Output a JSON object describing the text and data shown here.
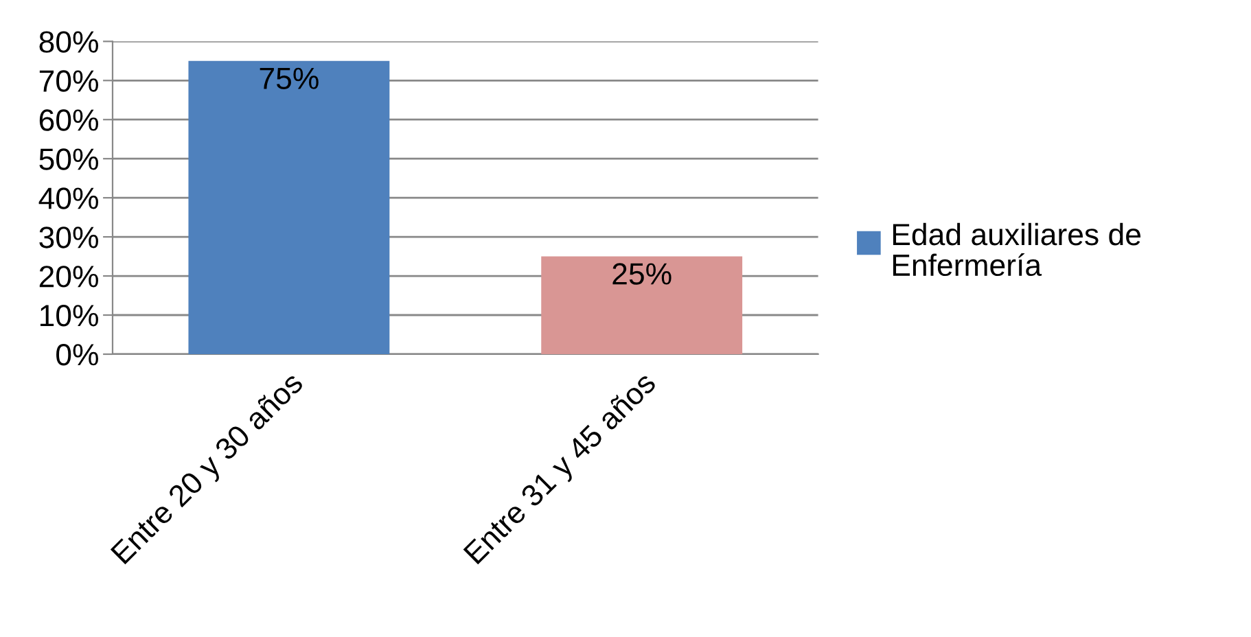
{
  "chart_data": {
    "type": "bar",
    "categories": [
      "Entre 20 y 30 años",
      "Entre 31 y 45 años"
    ],
    "series": [
      {
        "name": "Edad auxiliares de Enfermería",
        "color": "#4f81bd",
        "colors": [
          "#4f81bd",
          "#d99694"
        ],
        "values": [
          75,
          25
        ],
        "value_labels": [
          "75%",
          "25%"
        ]
      }
    ],
    "ylim": [
      0,
      80
    ],
    "yticks": [
      {
        "value": 0,
        "label": "0%"
      },
      {
        "value": 10,
        "label": "10%"
      },
      {
        "value": 20,
        "label": "20%"
      },
      {
        "value": 30,
        "label": "30%"
      },
      {
        "value": 40,
        "label": "40%"
      },
      {
        "value": 50,
        "label": "50%"
      },
      {
        "value": 60,
        "label": "60%"
      },
      {
        "value": 70,
        "label": "70%"
      },
      {
        "value": 80,
        "label": "80%"
      }
    ],
    "grid": "y",
    "legend": "right"
  }
}
